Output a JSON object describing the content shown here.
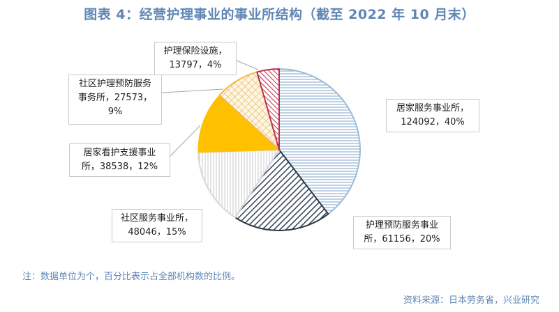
{
  "title": "图表 4：经营护理事业的事业所结构（截至 2022 年 10 月末）",
  "note": "注：数据单位为个，百分比表示占全部机构数的比例。",
  "source": "资料来源：日本劳务省，兴业研究",
  "chart_data": {
    "type": "pie",
    "title": "图表 4：经营护理事业的事业所结构（截至 2022 年 10 月末）",
    "slices": [
      {
        "label": "居家服务事业所",
        "value": 124092,
        "percent": "40%",
        "pattern": "hlines",
        "color": "#7ea6c9",
        "text": "居家服务事业所，\n124092，40%"
      },
      {
        "label": "护理预防服务事业所",
        "value": 61156,
        "percent": "20%",
        "pattern": "diag",
        "color": "#3a4a5c",
        "text": "护理预防服务事业\n所，61156，20%"
      },
      {
        "label": "社区服务事业所",
        "value": 48046,
        "percent": "15%",
        "pattern": "vlines",
        "color": "#c8c8c8",
        "text": "社区服务事业所，\n48046，15%"
      },
      {
        "label": "居家看护支援事业所",
        "value": 38538,
        "percent": "12%",
        "pattern": "solid",
        "color": "#ffc000",
        "text": "居家看护支援事业\n所，38538，12%"
      },
      {
        "label": "社区护理预防服务事务所",
        "value": 27573,
        "percent": "9%",
        "pattern": "grid",
        "color": "#f0b84a",
        "text": "社区护理预防服务\n事务所，27573，\n9%"
      },
      {
        "label": "护理保险设施",
        "value": 13797,
        "percent": "4%",
        "pattern": "rdiag",
        "color": "#c0304a",
        "text": "护理保险设施，\n13797，4%"
      }
    ]
  }
}
